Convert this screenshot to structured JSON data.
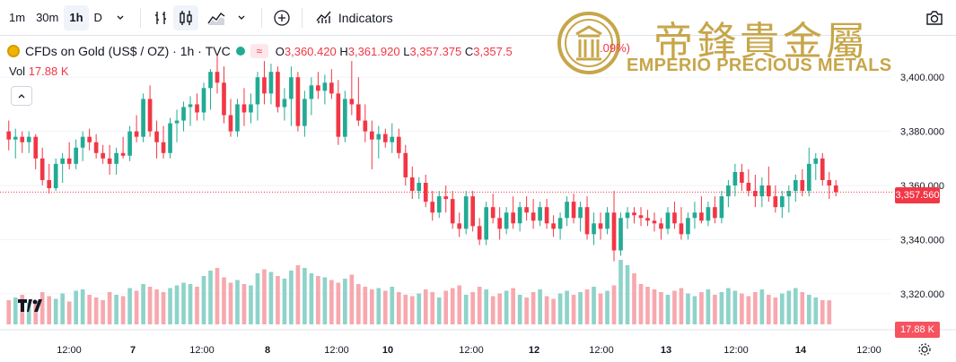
{
  "toolbar": {
    "intervals": [
      "1m",
      "30m",
      "1h",
      "D"
    ],
    "active_interval": "1h",
    "indicators_label": "Indicators",
    "icons": [
      "chevron-down-icon",
      "bar-style-icon",
      "candle-style-icon",
      "area-style-icon",
      "add-compare-icon",
      "indicators-icon",
      "camera-icon"
    ]
  },
  "legend": {
    "symbol": "CFDs on Gold (US$ / OZ)",
    "interval": "1h",
    "exchange": "TVC",
    "o_label": "O",
    "o_value": "3,360.420",
    "h_label": "H",
    "h_value": "3,361.920",
    "l_label": "L",
    "l_value": "3,357.375",
    "c_label": "C",
    "c_value": "3,357.5",
    "change_partial": ".09%)",
    "vol_label": "Vol",
    "vol_value": "17.88 K"
  },
  "watermark": {
    "chinese": "帝鋒貴金屬",
    "english": "EMPERIO PRECIOUS METALS"
  },
  "price_badge": "3,357.560",
  "volume_badge": "17.88 K",
  "colors": {
    "up": "#22ab94",
    "down": "#f23645",
    "up_vol": "#8ed3c9",
    "down_vol": "#f7a8ae",
    "gold": "#c7a64a"
  },
  "chart_data": {
    "type": "candlestick",
    "title": "CFDs on Gold (US$ / OZ) · 1h · TVC",
    "y_ticks": [
      "3,400.000",
      "3,380.000",
      "3,360.000",
      "3,340.000",
      "3,320.000"
    ],
    "y_tick_values": [
      3400,
      3380,
      3360,
      3340,
      3320
    ],
    "x_ticks": [
      "12:00",
      "7",
      "12:00",
      "8",
      "12:00",
      "10",
      "12:00",
      "12",
      "12:00",
      "13",
      "12:00",
      "14",
      "12:00"
    ],
    "ylim": [
      3310,
      3412
    ],
    "last_price": 3357.56,
    "candles_ohlc": [
      [
        3380,
        3384,
        3373,
        3377
      ],
      [
        3377,
        3381,
        3370,
        3378
      ],
      [
        3378,
        3380,
        3372,
        3376
      ],
      [
        3376,
        3380,
        3372,
        3378
      ],
      [
        3378,
        3379,
        3366,
        3370
      ],
      [
        3370,
        3374,
        3360,
        3362
      ],
      [
        3362,
        3368,
        3357,
        3359
      ],
      [
        3359,
        3370,
        3358,
        3368
      ],
      [
        3368,
        3372,
        3361,
        3370
      ],
      [
        3370,
        3376,
        3366,
        3368
      ],
      [
        3368,
        3377,
        3366,
        3374
      ],
      [
        3374,
        3380,
        3369,
        3378
      ],
      [
        3378,
        3381,
        3373,
        3376
      ],
      [
        3376,
        3379,
        3370,
        3372
      ],
      [
        3372,
        3375,
        3368,
        3370
      ],
      [
        3370,
        3375,
        3364,
        3368
      ],
      [
        3368,
        3374,
        3364,
        3372
      ],
      [
        3372,
        3378,
        3370,
        3371
      ],
      [
        3371,
        3382,
        3369,
        3380
      ],
      [
        3380,
        3386,
        3376,
        3378
      ],
      [
        3378,
        3394,
        3376,
        3392
      ],
      [
        3392,
        3397,
        3378,
        3380
      ],
      [
        3380,
        3384,
        3370,
        3376
      ],
      [
        3376,
        3382,
        3370,
        3372
      ],
      [
        3372,
        3385,
        3370,
        3383
      ],
      [
        3383,
        3388,
        3376,
        3384
      ],
      [
        3384,
        3391,
        3380,
        3389
      ],
      [
        3389,
        3393,
        3382,
        3390
      ],
      [
        3390,
        3394,
        3384,
        3387
      ],
      [
        3387,
        3398,
        3384,
        3396
      ],
      [
        3396,
        3403,
        3388,
        3402
      ],
      [
        3402,
        3408,
        3394,
        3398
      ],
      [
        3398,
        3404,
        3383,
        3386
      ],
      [
        3386,
        3392,
        3378,
        3380
      ],
      [
        3380,
        3392,
        3378,
        3390
      ],
      [
        3390,
        3396,
        3382,
        3387
      ],
      [
        3387,
        3394,
        3383,
        3390
      ],
      [
        3390,
        3402,
        3384,
        3400
      ],
      [
        3400,
        3406,
        3390,
        3394
      ],
      [
        3394,
        3405,
        3390,
        3402
      ],
      [
        3402,
        3404,
        3387,
        3389
      ],
      [
        3389,
        3396,
        3384,
        3392
      ],
      [
        3392,
        3404,
        3382,
        3400
      ],
      [
        3400,
        3402,
        3380,
        3382
      ],
      [
        3382,
        3395,
        3378,
        3392
      ],
      [
        3392,
        3400,
        3386,
        3397
      ],
      [
        3397,
        3402,
        3392,
        3395
      ],
      [
        3395,
        3401,
        3390,
        3398
      ],
      [
        3398,
        3403,
        3392,
        3394
      ],
      [
        3394,
        3399,
        3375,
        3378
      ],
      [
        3378,
        3395,
        3376,
        3392
      ],
      [
        3392,
        3406,
        3386,
        3390
      ],
      [
        3390,
        3400,
        3382,
        3384
      ],
      [
        3384,
        3390,
        3376,
        3380
      ],
      [
        3380,
        3384,
        3366,
        3377
      ],
      [
        3377,
        3382,
        3370,
        3379
      ],
      [
        3379,
        3381,
        3374,
        3376
      ],
      [
        3376,
        3383,
        3372,
        3378
      ],
      [
        3378,
        3381,
        3370,
        3372
      ],
      [
        3372,
        3375,
        3360,
        3363
      ],
      [
        3363,
        3367,
        3355,
        3358
      ],
      [
        3358,
        3363,
        3355,
        3361
      ],
      [
        3361,
        3364,
        3352,
        3354
      ],
      [
        3354,
        3358,
        3347,
        3350
      ],
      [
        3350,
        3358,
        3348,
        3356
      ],
      [
        3356,
        3360,
        3350,
        3355
      ],
      [
        3355,
        3358,
        3344,
        3346
      ],
      [
        3346,
        3350,
        3341,
        3344
      ],
      [
        3344,
        3358,
        3342,
        3356
      ],
      [
        3356,
        3358,
        3343,
        3345
      ],
      [
        3345,
        3348,
        3338,
        3340
      ],
      [
        3340,
        3354,
        3338,
        3352
      ],
      [
        3352,
        3357,
        3346,
        3348
      ],
      [
        3348,
        3352,
        3340,
        3344
      ],
      [
        3344,
        3352,
        3342,
        3350
      ],
      [
        3350,
        3356,
        3344,
        3346
      ],
      [
        3346,
        3354,
        3343,
        3352
      ],
      [
        3352,
        3356,
        3347,
        3350
      ],
      [
        3350,
        3355,
        3344,
        3347
      ],
      [
        3347,
        3354,
        3345,
        3352
      ],
      [
        3352,
        3355,
        3344,
        3346
      ],
      [
        3346,
        3349,
        3341,
        3344
      ],
      [
        3344,
        3350,
        3340,
        3348
      ],
      [
        3348,
        3356,
        3345,
        3354
      ],
      [
        3354,
        3357,
        3346,
        3348
      ],
      [
        3348,
        3354,
        3343,
        3352
      ],
      [
        3352,
        3356,
        3340,
        3342
      ],
      [
        3342,
        3350,
        3338,
        3346
      ],
      [
        3346,
        3350,
        3340,
        3344
      ],
      [
        3344,
        3352,
        3342,
        3350
      ],
      [
        3350,
        3358,
        3332,
        3336
      ],
      [
        3336,
        3350,
        3334,
        3348
      ],
      [
        3348,
        3352,
        3344,
        3350
      ],
      [
        3350,
        3352,
        3346,
        3349
      ],
      [
        3349,
        3352,
        3345,
        3348
      ],
      [
        3348,
        3351,
        3345,
        3347
      ],
      [
        3347,
        3350,
        3343,
        3346
      ],
      [
        3346,
        3348,
        3340,
        3344
      ],
      [
        3344,
        3352,
        3342,
        3350
      ],
      [
        3350,
        3354,
        3344,
        3346
      ],
      [
        3346,
        3352,
        3340,
        3342
      ],
      [
        3342,
        3350,
        3340,
        3348
      ],
      [
        3348,
        3354,
        3344,
        3350
      ],
      [
        3350,
        3356,
        3346,
        3347
      ],
      [
        3347,
        3354,
        3345,
        3352
      ],
      [
        3352,
        3356,
        3346,
        3348
      ],
      [
        3348,
        3358,
        3346,
        3356
      ],
      [
        3356,
        3362,
        3352,
        3360
      ],
      [
        3360,
        3368,
        3356,
        3365
      ],
      [
        3365,
        3368,
        3358,
        3361
      ],
      [
        3361,
        3366,
        3356,
        3358
      ],
      [
        3358,
        3364,
        3352,
        3356
      ],
      [
        3356,
        3363,
        3352,
        3360
      ],
      [
        3360,
        3367,
        3354,
        3356
      ],
      [
        3356,
        3360,
        3350,
        3352
      ],
      [
        3352,
        3358,
        3348,
        3356
      ],
      [
        3356,
        3360,
        3350,
        3358
      ],
      [
        3358,
        3364,
        3354,
        3362
      ],
      [
        3362,
        3366,
        3356,
        3358
      ],
      [
        3358,
        3374,
        3356,
        3368
      ],
      [
        3368,
        3372,
        3362,
        3370
      ],
      [
        3370,
        3372,
        3360,
        3362
      ],
      [
        3362,
        3365,
        3355,
        3360
      ],
      [
        3360,
        3362,
        3356,
        3357.56
      ]
    ],
    "volumes_k": [
      18,
      20,
      22,
      16,
      15,
      24,
      21,
      19,
      23,
      17,
      25,
      26,
      22,
      20,
      18,
      24,
      22,
      21,
      27,
      25,
      30,
      28,
      26,
      24,
      27,
      29,
      31,
      30,
      28,
      36,
      40,
      42,
      35,
      31,
      33,
      30,
      29,
      38,
      41,
      39,
      36,
      34,
      40,
      44,
      42,
      38,
      36,
      35,
      33,
      31,
      34,
      37,
      30,
      28,
      26,
      27,
      25,
      28,
      24,
      22,
      21,
      23,
      26,
      24,
      20,
      25,
      27,
      29,
      22,
      24,
      28,
      26,
      21,
      23,
      25,
      27,
      22,
      20,
      24,
      26,
      21,
      19,
      23,
      25,
      22,
      24,
      26,
      28,
      23,
      25,
      29,
      48,
      44,
      38,
      30,
      28,
      26,
      24,
      22,
      25,
      27,
      23,
      21,
      24,
      26,
      22,
      24,
      27,
      25,
      23,
      21,
      24,
      26,
      22,
      20,
      23,
      25,
      27,
      24,
      22,
      20,
      18,
      17.88
    ]
  }
}
